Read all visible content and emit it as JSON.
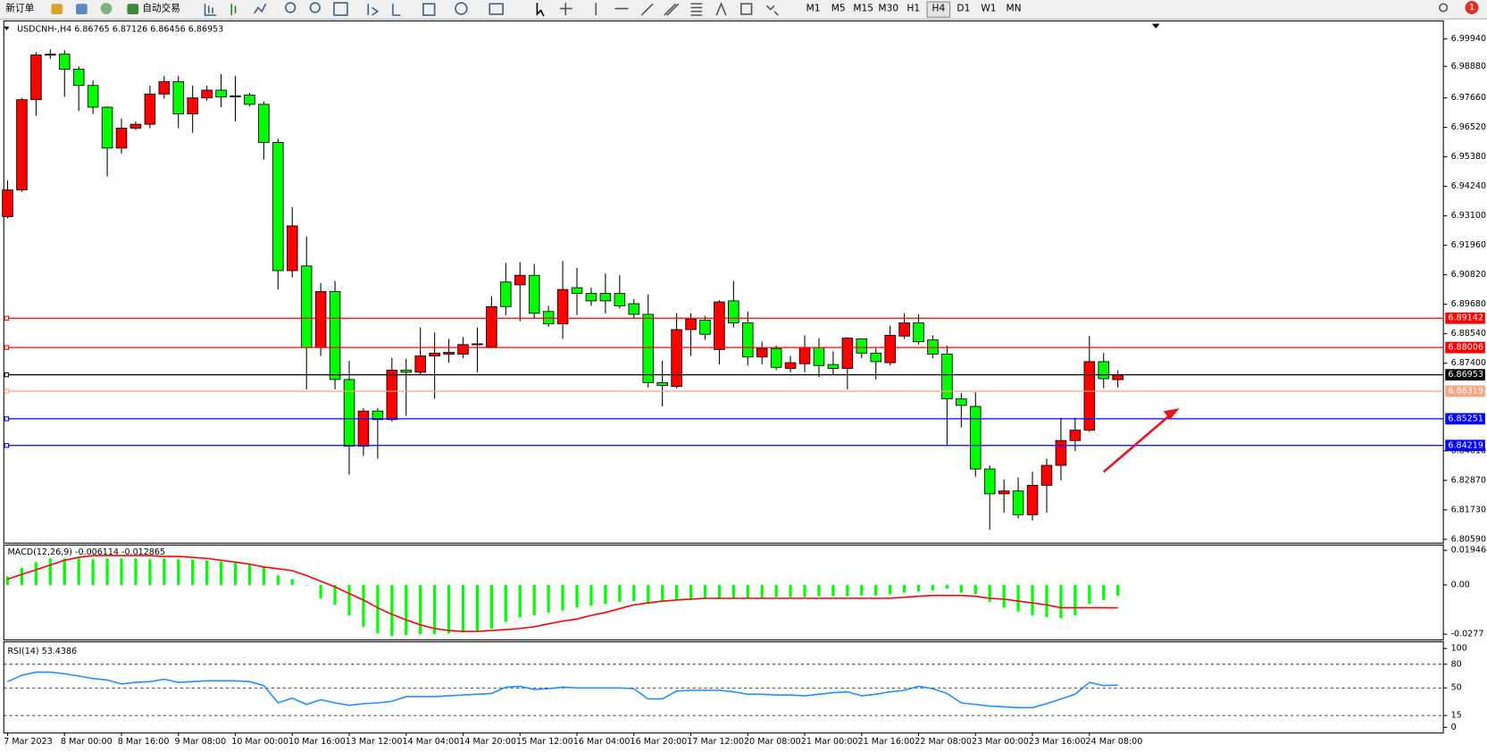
{
  "toolbar": {
    "new_order": "新订单",
    "auto_trading": "自动交易",
    "timeframes": [
      "M1",
      "M5",
      "M15",
      "M30",
      "H1",
      "H4",
      "D1",
      "W1",
      "MN"
    ],
    "notifications": "1"
  },
  "chart_data": [
    {
      "type": "candlestick",
      "title": "USDCNH-,H4  6.86765 6.87126 6.86456 6.86953",
      "categories": [
        "7 Mar 2023",
        null,
        null,
        null,
        "8 Mar 00:00",
        null,
        null,
        null,
        "8 Mar 16:00",
        null,
        null,
        null,
        "9 Mar 08:00",
        null,
        null,
        null,
        "10 Mar 00:00",
        null,
        null,
        null,
        "10 Mar 16:00",
        null,
        null,
        null,
        "13 Mar 12:00",
        null,
        null,
        null,
        "14 Mar 04:00",
        null,
        null,
        null,
        "14 Mar 20:00",
        null,
        null,
        null,
        "15 Mar 12:00",
        null,
        null,
        null,
        "16 Mar 04:00",
        null,
        null,
        null,
        "16 Mar 20:00",
        null,
        null,
        null,
        "17 Mar 12:00",
        null,
        null,
        null,
        "20 Mar 08:00",
        null,
        null,
        null,
        "21 Mar 00:00",
        null,
        null,
        null,
        "21 Mar 16:00",
        null,
        null,
        null,
        "22 Mar 08:00",
        null,
        null,
        null,
        "23 Mar 00:00",
        null,
        null,
        null,
        "23 Mar 16:00",
        null,
        null,
        null,
        "24 Mar 08:00",
        null,
        null
      ],
      "open": [
        6.9307,
        6.941,
        6.9759,
        6.9935,
        6.9935,
        6.9877,
        6.9814,
        6.973,
        6.9572,
        6.9649,
        6.9664,
        6.9781,
        6.9829,
        6.9704,
        6.9766,
        6.9796,
        6.9774,
        6.9777,
        6.9741,
        6.9594,
        6.9098,
        6.9116,
        6.8801,
        6.9017,
        6.8677,
        6.8419,
        6.8555,
        6.8522,
        6.8713,
        6.8705,
        6.8768,
        6.8775,
        6.8775,
        6.8812,
        6.8804,
        6.9054,
        6.9043,
        6.908,
        6.894,
        6.8892,
        6.9032,
        6.901,
        6.901,
        6.901,
        6.897,
        6.8929,
        6.8665,
        6.865,
        6.887,
        6.8907,
        6.8793,
        6.8981,
        6.8896,
        6.8764,
        6.8797,
        6.872,
        6.8738,
        6.8801,
        6.8735,
        6.872,
        6.8834,
        6.8779,
        6.8742,
        6.8845,
        6.8896,
        6.883,
        6.8775,
        6.8602,
        6.8573,
        6.8331,
        6.8235,
        6.8246,
        6.8154,
        6.8268,
        6.8345,
        6.8441,
        6.8481,
        6.8746,
        6.86765
      ],
      "high": [
        6.9447,
        6.9766,
        6.9943,
        6.9954,
        6.995,
        6.9888,
        6.9833,
        6.9733,
        6.9686,
        6.9675,
        6.9814,
        6.9851,
        6.9851,
        6.9814,
        6.9814,
        6.9858,
        6.9851,
        6.9785,
        6.9752,
        6.9608,
        6.9344,
        6.923,
        6.905,
        6.9058,
        6.8749,
        6.8566,
        6.8566,
        6.876,
        6.8757,
        6.8878,
        6.8859,
        6.8834,
        6.8841,
        6.8878,
        6.8999,
        6.9128,
        6.9131,
        6.9124,
        6.8962,
        6.9135,
        6.9109,
        6.9032,
        6.9087,
        6.908,
        6.8988,
        6.9006,
        6.8749,
        6.8933,
        6.8933,
        6.8922,
        6.8984,
        6.9058,
        6.894,
        6.8823,
        6.8808,
        6.8768,
        6.8848,
        6.8837,
        6.8786,
        6.8841,
        6.8837,
        6.8797,
        6.8885,
        6.8933,
        6.8929,
        6.8848,
        6.8808,
        6.8624,
        6.8628,
        6.8345,
        6.829,
        6.8298,
        6.832,
        6.8371,
        6.8529,
        6.8529,
        6.8845,
        6.8779,
        6.87126
      ],
      "low": [
        6.93,
        6.9403,
        6.9697,
        6.9917,
        6.977,
        6.9715,
        6.9704,
        6.9462,
        6.955,
        6.9642,
        6.9649,
        6.9763,
        6.9649,
        6.9631,
        6.9755,
        6.973,
        6.9675,
        6.9733,
        6.9528,
        6.9025,
        6.9072,
        6.8639,
        6.8768,
        6.8639,
        6.8309,
        6.8382,
        6.8371,
        6.8514,
        6.8536,
        6.8694,
        6.8602,
        6.8742,
        6.876,
        6.8705,
        6.8797,
        6.8926,
        6.8903,
        6.8914,
        6.8881,
        6.8834,
        6.8926,
        6.8962,
        6.8933,
        6.8951,
        6.8914,
        6.8646,
        6.8573,
        6.8643,
        6.8768,
        6.883,
        6.8735,
        6.8878,
        6.8731,
        6.8735,
        6.8713,
        6.8705,
        6.8705,
        6.8687,
        6.8694,
        6.8639,
        6.876,
        6.8677,
        6.8731,
        6.8834,
        6.8812,
        6.876,
        6.8419,
        6.8492,
        6.8301,
        6.8096,
        6.8162,
        6.814,
        6.8132,
        6.8162,
        6.8287,
        6.84,
        6.8474,
        6.8643,
        6.86456
      ],
      "close": [
        6.941,
        6.9759,
        6.9932,
        6.9935,
        6.9877,
        6.9814,
        6.973,
        6.9572,
        6.9649,
        6.9664,
        6.9781,
        6.9829,
        6.9704,
        6.9766,
        6.9796,
        6.977,
        6.9774,
        6.9741,
        6.9594,
        6.9098,
        6.9271,
        6.8801,
        6.9017,
        6.8677,
        6.8419,
        6.8555,
        6.8522,
        6.8713,
        6.8705,
        6.8768,
        6.8779,
        6.8782,
        6.8812,
        6.8815,
        6.8959,
        6.8959,
        6.908,
        6.8933,
        6.8892,
        6.9025,
        6.901,
        6.8981,
        6.8981,
        6.8962,
        6.8929,
        6.8665,
        6.8654,
        6.887,
        6.8911,
        6.8852,
        6.8977,
        6.8896,
        6.8764,
        6.8797,
        6.8724,
        6.8742,
        6.8801,
        6.8731,
        6.872,
        6.8837,
        6.8779,
        6.8746,
        6.8848,
        6.8896,
        6.8823,
        6.8775,
        6.8602,
        6.8577,
        6.8331,
        6.8235,
        6.8246,
        6.8154,
        6.8268,
        6.8345,
        6.8441,
        6.8481,
        6.8746,
        6.868,
        6.86953
      ],
      "up_color": "#ff0000",
      "down_color": "#00ff00",
      "flat_color": "#000000",
      "ylim": [
        6.8059,
        6.9994
      ],
      "yticks": [
        {
          "value": 6.9994,
          "label": "6.99940"
        },
        {
          "value": 6.9888,
          "label": "6.98880"
        },
        {
          "value": 6.9766,
          "label": "6.97660"
        },
        {
          "value": 6.9652,
          "label": "6.96520"
        },
        {
          "value": 6.9538,
          "label": "6.95380"
        },
        {
          "value": 6.9424,
          "label": "6.94240"
        },
        {
          "value": 6.931,
          "label": "6.93100"
        },
        {
          "value": 6.9196,
          "label": "6.91960"
        },
        {
          "value": 6.9082,
          "label": "6.90820"
        },
        {
          "value": 6.8968,
          "label": "6.89680"
        },
        {
          "value": 6.8854,
          "label": "6.88540"
        },
        {
          "value": 6.874,
          "label": "6.87400"
        },
        {
          "value": 6.8401,
          "label": "6.84010"
        },
        {
          "value": 6.8287,
          "label": "6.82870"
        },
        {
          "value": 6.8173,
          "label": "6.81730"
        },
        {
          "value": 6.8059,
          "label": "6.80590"
        }
      ],
      "levels": [
        {
          "value": 6.89142,
          "color": "#ff0000"
        },
        {
          "value": 6.88006,
          "color": "#ff0000"
        },
        {
          "value": 6.86953,
          "color": "#000000"
        },
        {
          "value": 6.86319,
          "color": "#f4a582"
        },
        {
          "value": 6.85251,
          "color": "#0000ff"
        },
        {
          "value": 6.84219,
          "color": "#0000ff"
        }
      ]
    },
    {
      "type": "macd",
      "title": "MACD(12,26,9) -0.006114 -0.012865",
      "ylim": [
        -0.0304,
        0.0219
      ],
      "yticks": [
        0.019464,
        {
          "value": 0,
          "label": "0.00"
        },
        -0.0277
      ],
      "series": [
        {
          "style": "bar",
          "color": "#00ff00",
          "values": [
            0.0048,
            0.0096,
            0.0128,
            0.0149,
            0.0149,
            0.0149,
            0.0144,
            0.0149,
            0.0149,
            0.0149,
            0.0144,
            0.0149,
            0.0144,
            0.0144,
            0.0139,
            0.0133,
            0.0128,
            0.0117,
            0.0101,
            0.0053,
            0.0032,
            0.0,
            -0.0075,
            -0.0112,
            -0.0171,
            -0.0235,
            -0.0272,
            -0.0288,
            -0.0282,
            -0.0277,
            -0.0277,
            -0.0272,
            -0.0267,
            -0.0261,
            -0.0245,
            -0.0208,
            -0.0181,
            -0.0171,
            -0.0155,
            -0.0144,
            -0.0128,
            -0.0117,
            -0.0107,
            -0.0096,
            -0.0091,
            -0.0101,
            -0.0091,
            -0.0085,
            -0.0085,
            -0.008,
            -0.008,
            -0.0075,
            -0.0075,
            -0.0075,
            -0.0069,
            -0.0069,
            -0.0069,
            -0.0064,
            -0.0064,
            -0.0064,
            -0.0059,
            -0.0059,
            -0.0053,
            -0.0043,
            -0.0037,
            -0.0032,
            -0.0021,
            -0.0043,
            -0.0053,
            -0.0096,
            -0.0128,
            -0.0149,
            -0.0171,
            -0.0181,
            -0.0187,
            -0.0171,
            -0.0107,
            -0.0085,
            -0.006114
          ]
        },
        {
          "style": "line",
          "color": "#ff0000",
          "values": [
            0.0032,
            0.0059,
            0.0085,
            0.0112,
            0.0139,
            0.0155,
            0.0165,
            0.0165,
            0.0165,
            0.0165,
            0.0165,
            0.016,
            0.016,
            0.0155,
            0.0149,
            0.0139,
            0.0128,
            0.0117,
            0.0101,
            0.0091,
            0.008,
            0.0053,
            0.0021,
            -0.0011,
            -0.0048,
            -0.0085,
            -0.0128,
            -0.0165,
            -0.0197,
            -0.0224,
            -0.0245,
            -0.0256,
            -0.0261,
            -0.0261,
            -0.0256,
            -0.0251,
            -0.0245,
            -0.0235,
            -0.0219,
            -0.0203,
            -0.0192,
            -0.0171,
            -0.0155,
            -0.0133,
            -0.0112,
            -0.0101,
            -0.0091,
            -0.0085,
            -0.008,
            -0.0075,
            -0.0075,
            -0.0075,
            -0.0075,
            -0.0075,
            -0.0075,
            -0.0075,
            -0.0075,
            -0.0075,
            -0.0075,
            -0.0075,
            -0.0075,
            -0.0075,
            -0.0075,
            -0.0069,
            -0.0064,
            -0.0059,
            -0.0059,
            -0.0059,
            -0.0064,
            -0.0075,
            -0.008,
            -0.0091,
            -0.0101,
            -0.0112,
            -0.0128,
            -0.0128,
            -0.0128,
            -0.0128,
            -0.012865
          ]
        }
      ]
    },
    {
      "type": "line",
      "title": "RSI(14) 53.4386",
      "color": "#1e90ff",
      "ylim": [
        0,
        100
      ],
      "yticks": [
        0,
        15,
        50,
        80,
        100
      ],
      "levels": [
        15,
        50,
        80
      ],
      "values": [
        58,
        66,
        70,
        70,
        68,
        65,
        62,
        60,
        55,
        57,
        58,
        61,
        57,
        58,
        59,
        59,
        59,
        58,
        53,
        31,
        37,
        29,
        35,
        31,
        28,
        30,
        31,
        33,
        39,
        39,
        39,
        40,
        41,
        42,
        43,
        51,
        52,
        48,
        49,
        51,
        50,
        50,
        50,
        50,
        49,
        36,
        36,
        46,
        47,
        47,
        47,
        45,
        42,
        42,
        41,
        41,
        40,
        42,
        44,
        45,
        40,
        42,
        45,
        47,
        52,
        49,
        43,
        31,
        29,
        27,
        26,
        25,
        25,
        30,
        36,
        42,
        57,
        53,
        53.4386
      ]
    }
  ]
}
